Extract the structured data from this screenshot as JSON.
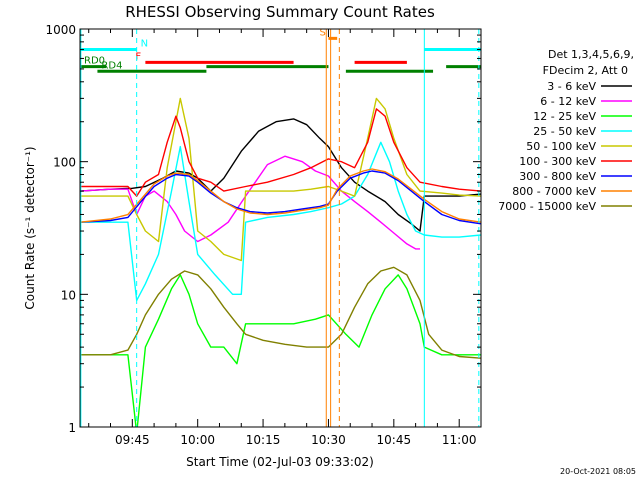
{
  "chart_data": {
    "type": "line",
    "title": "RHESSI Observing Summary Count Rates",
    "xlabel": "Start Time (02-Jul-03 09:33:02)",
    "ylabel": "Count Rate (s⁻¹ detector⁻¹)",
    "yscale": "log",
    "ylim": [
      1,
      1000
    ],
    "xlim_min": [
      33,
      125
    ],
    "x_ticks": [
      {
        "t": 45,
        "label": "09:45"
      },
      {
        "t": 60,
        "label": "10:00"
      },
      {
        "t": 75,
        "label": "10:15"
      },
      {
        "t": 90,
        "label": "10:30"
      },
      {
        "t": 105,
        "label": "10:45"
      },
      {
        "t": 120,
        "label": "11:00"
      }
    ],
    "y_ticks": [
      {
        "v": 1,
        "label": "1"
      },
      {
        "v": 10,
        "label": "10"
      },
      {
        "v": 100,
        "label": "100"
      },
      {
        "v": 1000,
        "label": "1000"
      }
    ],
    "legend_header": [
      "Det 1,3,4,5,6,9,",
      "FDecim 2, Att 0"
    ],
    "series": [
      {
        "name": "3 - 6 keV",
        "color": "#000000",
        "points": [
          [
            33,
            60
          ],
          [
            40,
            62
          ],
          [
            45,
            63
          ],
          [
            48,
            65
          ],
          [
            52,
            75
          ],
          [
            55,
            85
          ],
          [
            58,
            82
          ],
          [
            60,
            75
          ],
          [
            63,
            60
          ],
          [
            66,
            75
          ],
          [
            70,
            120
          ],
          [
            74,
            170
          ],
          [
            78,
            200
          ],
          [
            82,
            210
          ],
          [
            85,
            190
          ],
          [
            88,
            150
          ],
          [
            90,
            130
          ],
          [
            93,
            90
          ],
          [
            96,
            70
          ],
          [
            99,
            60
          ],
          [
            103,
            50
          ],
          [
            106,
            40
          ],
          [
            109,
            34
          ],
          [
            111,
            30
          ],
          [
            112,
            55
          ],
          [
            116,
            55
          ],
          [
            120,
            55
          ],
          [
            125,
            57
          ]
        ]
      },
      {
        "name": "6 - 12 keV",
        "color": "#ff00ff",
        "points": [
          [
            33,
            60
          ],
          [
            40,
            62
          ],
          [
            44,
            62
          ],
          [
            46,
            40
          ],
          [
            48,
            55
          ],
          [
            50,
            60
          ],
          [
            53,
            50
          ],
          [
            55,
            40
          ],
          [
            57,
            30
          ],
          [
            60,
            25
          ],
          [
            63,
            28
          ],
          [
            67,
            35
          ],
          [
            71,
            55
          ],
          [
            76,
            95
          ],
          [
            80,
            110
          ],
          [
            84,
            100
          ],
          [
            87,
            85
          ],
          [
            90,
            78
          ],
          [
            93,
            60
          ],
          [
            96,
            50
          ],
          [
            99,
            42
          ],
          [
            102,
            35
          ],
          [
            105,
            29
          ],
          [
            108,
            24
          ],
          [
            110,
            22
          ],
          [
            111,
            22
          ]
        ]
      },
      {
        "name": "12 - 25 keV",
        "color": "#00ff00",
        "points": [
          [
            33,
            3.5
          ],
          [
            40,
            3.5
          ],
          [
            44,
            3.5
          ],
          [
            46,
            0.9
          ],
          [
            48,
            4
          ],
          [
            51,
            6.5
          ],
          [
            54,
            11
          ],
          [
            56,
            14
          ],
          [
            58,
            10
          ],
          [
            60,
            6
          ],
          [
            63,
            4
          ],
          [
            66,
            4
          ],
          [
            69,
            3
          ],
          [
            71,
            6
          ],
          [
            76,
            6
          ],
          [
            82,
            6
          ],
          [
            87,
            6.5
          ],
          [
            90,
            7
          ],
          [
            94,
            5
          ],
          [
            97,
            4
          ],
          [
            100,
            7
          ],
          [
            103,
            11
          ],
          [
            106,
            14
          ],
          [
            108,
            11
          ],
          [
            111,
            6
          ],
          [
            112,
            4
          ],
          [
            116,
            3.5
          ],
          [
            120,
            3.5
          ],
          [
            125,
            3.5
          ]
        ]
      },
      {
        "name": "25 - 50 keV",
        "color": "#00ffff",
        "points": [
          [
            33,
            35
          ],
          [
            40,
            35
          ],
          [
            44,
            35
          ],
          [
            46,
            9
          ],
          [
            48,
            12
          ],
          [
            51,
            20
          ],
          [
            54,
            60
          ],
          [
            56,
            130
          ],
          [
            58,
            50
          ],
          [
            60,
            20
          ],
          [
            64,
            14
          ],
          [
            68,
            10
          ],
          [
            70,
            10
          ],
          [
            71,
            35
          ],
          [
            76,
            38
          ],
          [
            82,
            40
          ],
          [
            86,
            42
          ],
          [
            90,
            45
          ],
          [
            93,
            48
          ],
          [
            96,
            55
          ],
          [
            99,
            80
          ],
          [
            102,
            140
          ],
          [
            104,
            100
          ],
          [
            106,
            60
          ],
          [
            108,
            40
          ],
          [
            110,
            30
          ],
          [
            112,
            28
          ],
          [
            116,
            27
          ],
          [
            120,
            27
          ],
          [
            125,
            28
          ]
        ]
      },
      {
        "name": "50 - 100 keV",
        "color": "#c8c800",
        "points": [
          [
            33,
            55
          ],
          [
            40,
            55
          ],
          [
            44,
            55
          ],
          [
            46,
            40
          ],
          [
            48,
            30
          ],
          [
            51,
            25
          ],
          [
            53,
            90
          ],
          [
            55,
            200
          ],
          [
            56,
            300
          ],
          [
            58,
            150
          ],
          [
            60,
            30
          ],
          [
            63,
            25
          ],
          [
            66,
            20
          ],
          [
            70,
            18
          ],
          [
            71,
            60
          ],
          [
            76,
            60
          ],
          [
            82,
            60
          ],
          [
            86,
            62
          ],
          [
            90,
            65
          ],
          [
            93,
            60
          ],
          [
            96,
            55
          ],
          [
            99,
            150
          ],
          [
            101,
            300
          ],
          [
            103,
            250
          ],
          [
            105,
            150
          ],
          [
            108,
            80
          ],
          [
            111,
            60
          ],
          [
            116,
            58
          ],
          [
            120,
            56
          ],
          [
            125,
            55
          ]
        ]
      },
      {
        "name": "100 - 300 keV",
        "color": "#ff0000",
        "points": [
          [
            33,
            65
          ],
          [
            40,
            65
          ],
          [
            44,
            65
          ],
          [
            46,
            55
          ],
          [
            48,
            70
          ],
          [
            51,
            80
          ],
          [
            53,
            140
          ],
          [
            55,
            220
          ],
          [
            56,
            180
          ],
          [
            58,
            100
          ],
          [
            60,
            75
          ],
          [
            63,
            70
          ],
          [
            66,
            60
          ],
          [
            71,
            65
          ],
          [
            76,
            70
          ],
          [
            82,
            80
          ],
          [
            86,
            90
          ],
          [
            90,
            105
          ],
          [
            93,
            100
          ],
          [
            96,
            90
          ],
          [
            99,
            140
          ],
          [
            101,
            250
          ],
          [
            103,
            220
          ],
          [
            105,
            140
          ],
          [
            108,
            90
          ],
          [
            111,
            70
          ],
          [
            116,
            65
          ],
          [
            120,
            62
          ],
          [
            125,
            60
          ]
        ]
      },
      {
        "name": "300 - 800 keV",
        "color": "#0000ff",
        "points": [
          [
            33,
            35
          ],
          [
            40,
            36
          ],
          [
            44,
            38
          ],
          [
            47,
            50
          ],
          [
            50,
            65
          ],
          [
            53,
            75
          ],
          [
            55,
            80
          ],
          [
            58,
            78
          ],
          [
            60,
            70
          ],
          [
            63,
            58
          ],
          [
            66,
            50
          ],
          [
            69,
            45
          ],
          [
            72,
            42
          ],
          [
            76,
            41
          ],
          [
            80,
            42
          ],
          [
            84,
            44
          ],
          [
            88,
            46
          ],
          [
            90,
            48
          ],
          [
            92,
            60
          ],
          [
            95,
            75
          ],
          [
            98,
            82
          ],
          [
            100,
            85
          ],
          [
            103,
            82
          ],
          [
            106,
            72
          ],
          [
            109,
            60
          ],
          [
            112,
            50
          ],
          [
            116,
            40
          ],
          [
            120,
            36
          ],
          [
            125,
            34
          ]
        ]
      },
      {
        "name": "800 - 7000 keV",
        "color": "#ff8000",
        "points": [
          [
            33,
            35
          ],
          [
            40,
            37
          ],
          [
            44,
            40
          ],
          [
            47,
            52
          ],
          [
            50,
            68
          ],
          [
            53,
            78
          ],
          [
            55,
            82
          ],
          [
            58,
            80
          ],
          [
            60,
            72
          ],
          [
            63,
            60
          ],
          [
            66,
            50
          ],
          [
            69,
            44
          ],
          [
            72,
            41
          ],
          [
            76,
            40
          ],
          [
            80,
            41
          ],
          [
            84,
            43
          ],
          [
            88,
            45
          ],
          [
            90,
            47
          ],
          [
            92,
            62
          ],
          [
            95,
            78
          ],
          [
            98,
            85
          ],
          [
            100,
            88
          ],
          [
            103,
            84
          ],
          [
            106,
            74
          ],
          [
            109,
            62
          ],
          [
            112,
            52
          ],
          [
            116,
            42
          ],
          [
            120,
            37
          ],
          [
            125,
            35
          ]
        ]
      },
      {
        "name": "7000 - 15000 keV",
        "color": "#808000",
        "points": [
          [
            33,
            3.5
          ],
          [
            40,
            3.5
          ],
          [
            44,
            3.8
          ],
          [
            46,
            5
          ],
          [
            48,
            7
          ],
          [
            51,
            10
          ],
          [
            54,
            13
          ],
          [
            57,
            15
          ],
          [
            60,
            14
          ],
          [
            63,
            11
          ],
          [
            66,
            8
          ],
          [
            69,
            6
          ],
          [
            71,
            5
          ],
          [
            75,
            4.5
          ],
          [
            80,
            4.2
          ],
          [
            85,
            4
          ],
          [
            90,
            4
          ],
          [
            93,
            5
          ],
          [
            96,
            8
          ],
          [
            99,
            12
          ],
          [
            102,
            15
          ],
          [
            105,
            16
          ],
          [
            108,
            14
          ],
          [
            111,
            9
          ],
          [
            113,
            5
          ],
          [
            116,
            3.8
          ],
          [
            120,
            3.4
          ],
          [
            125,
            3.3
          ]
        ]
      }
    ],
    "annotation_bars": [
      {
        "label": "N",
        "color": "#00ffff",
        "level": 700,
        "segments": [
          [
            33,
            46
          ],
          [
            112,
            125
          ]
        ]
      },
      {
        "label": "F",
        "color": "#ff0000",
        "level": 560,
        "segments": [
          [
            48,
            82
          ],
          [
            96,
            108
          ]
        ]
      },
      {
        "label": "RD0",
        "color": "#008000",
        "level": 520,
        "segments": [
          [
            33,
            39
          ],
          [
            62,
            90
          ],
          [
            117,
            125
          ]
        ]
      },
      {
        "label": "RD4",
        "color": "#008000",
        "level": 480,
        "segments": [
          [
            37,
            62
          ],
          [
            94,
            114
          ]
        ]
      },
      {
        "label": "S",
        "color": "#ff8000",
        "level": 850,
        "segments": [
          [
            90,
            92
          ]
        ]
      }
    ],
    "vertical_lines": [
      {
        "t": 46,
        "color": "#00ffff",
        "style": "dashed"
      },
      {
        "t": 89.5,
        "color": "#ff8000",
        "style": "solid"
      },
      {
        "t": 90.5,
        "color": "#ff8000",
        "style": "solid"
      },
      {
        "t": 92.5,
        "color": "#ff8000",
        "style": "dashed"
      },
      {
        "t": 112,
        "color": "#00ffff",
        "style": "solid"
      },
      {
        "t": 124.5,
        "color": "#00ffff",
        "style": "dashed"
      },
      {
        "t": 33.2,
        "color": "#00ffff",
        "style": "solid"
      }
    ]
  },
  "footer_timestamp": "20-Oct-2021 08:05"
}
